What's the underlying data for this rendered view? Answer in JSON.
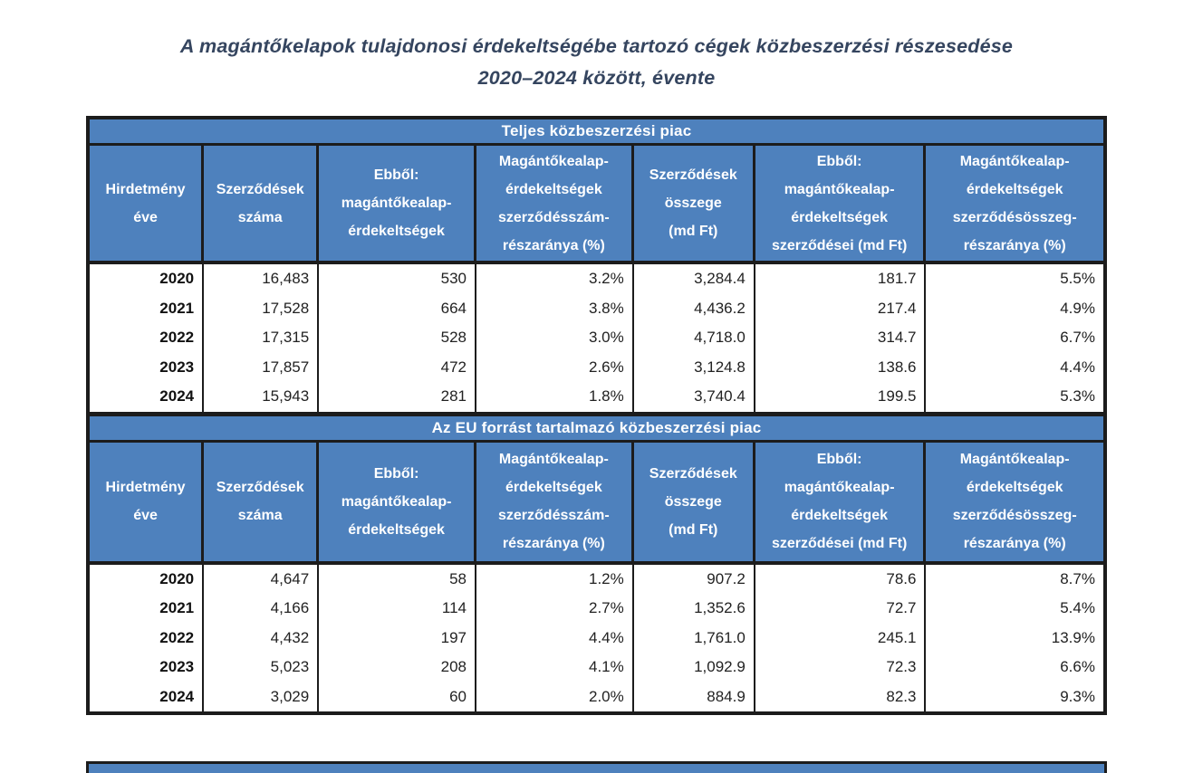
{
  "document": {
    "title_line1": "A magántőkelapok tulajdonosi érdekeltségébe tartozó cégek közbeszerzési részesedése",
    "title_line2": "2020–2024 között, évente"
  },
  "colors": {
    "header_blue": "#4E81BD",
    "border_black": "#1C1C1C",
    "title_text": "#35455F"
  },
  "tables": [
    {
      "section_title": "Teljes közbeszerzési piac",
      "columns": [
        "Hirdetmény\néve",
        "Szerződések\nszáma",
        "Ebből:\nmagántőkealap-\nérdekeltségek",
        "Magántőkealap-\nérdekeltségek\nszerződésszám-\nrészaránya (%)",
        "Szerződések\nösszege\n(md Ft)",
        "Ebből:\nmagántőkealap-\nérdekeltségek\nszerződései (md Ft)",
        "Magántőkealap-\nérdekeltségek\nszerződésösszeg-\nrészaránya (%)"
      ],
      "rows": [
        [
          "2020",
          "16,483",
          "530",
          "3.2%",
          "3,284.4",
          "181.7",
          "5.5%"
        ],
        [
          "2021",
          "17,528",
          "664",
          "3.8%",
          "4,436.2",
          "217.4",
          "4.9%"
        ],
        [
          "2022",
          "17,315",
          "528",
          "3.0%",
          "4,718.0",
          "314.7",
          "6.7%"
        ],
        [
          "2023",
          "17,857",
          "472",
          "2.6%",
          "3,124.8",
          "138.6",
          "4.4%"
        ],
        [
          "2024",
          "15,943",
          "281",
          "1.8%",
          "3,740.4",
          "199.5",
          "5.3%"
        ]
      ]
    },
    {
      "section_title": "Az EU forrást tartalmazó közbeszerzési piac",
      "columns": [
        "Hirdetmény\néve",
        "Szerződések\nszáma",
        "Ebből:\nmagántőkealap-\nérdekeltségek",
        "Magántőkealap-\nérdekeltségek\nszerződésszám-\nrészaránya (%)",
        "Szerződések\nösszege\n(md Ft)",
        "Ebből:\nmagántőkealap-\nérdekeltségek\nszerződései (md Ft)",
        "Magántőkealap-\nérdekeltségek\nszerződésösszeg-\nrészaránya (%)"
      ],
      "rows": [
        [
          "2020",
          "4,647",
          "58",
          "1.2%",
          "907.2",
          "78.6",
          "8.7%"
        ],
        [
          "2021",
          "4,166",
          "114",
          "2.7%",
          "1,352.6",
          "72.7",
          "5.4%"
        ],
        [
          "2022",
          "4,432",
          "197",
          "4.4%",
          "1,761.0",
          "245.1",
          "13.9%"
        ],
        [
          "2023",
          "5,023",
          "208",
          "4.1%",
          "1,092.9",
          "72.3",
          "6.6%"
        ],
        [
          "2024",
          "3,029",
          "60",
          "2.0%",
          "884.9",
          "82.3",
          "9.3%"
        ]
      ]
    }
  ]
}
